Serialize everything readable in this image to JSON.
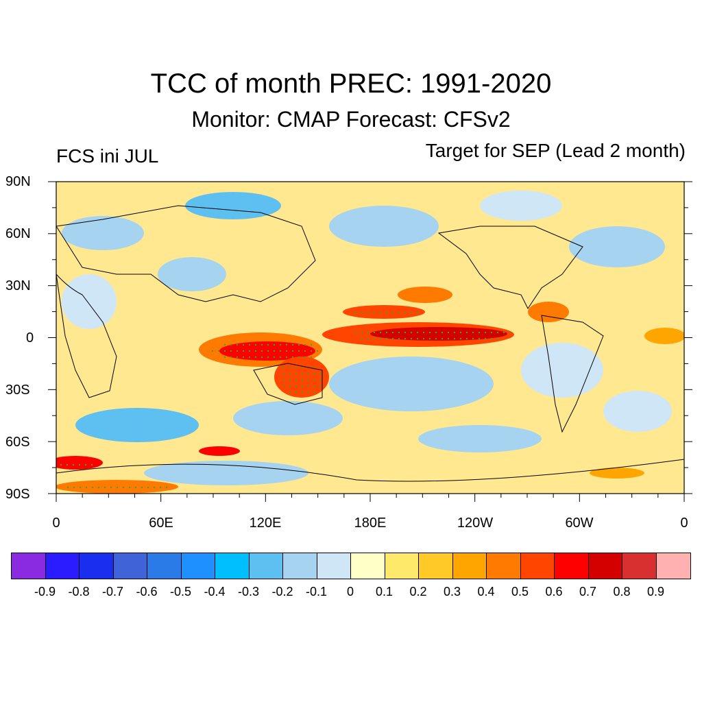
{
  "title": "TCC of month PREC: 1991-2020",
  "subtitle": "Monitor: CMAP   Forecast: CFSv2",
  "left_label": "FCS ini JUL",
  "right_label": "Target for SEP (Lead 2 month)",
  "lat_labels": [
    "90N",
    "60N",
    "30N",
    "0",
    "30S",
    "60S",
    "90S"
  ],
  "lon_labels": [
    "0",
    "60E",
    "120E",
    "180E",
    "120W",
    "60W",
    "0"
  ],
  "colorbar": {
    "labels": [
      "-0.9",
      "-0.8",
      "-0.7",
      "-0.6",
      "-0.5",
      "-0.4",
      "-0.3",
      "-0.2",
      "-0.1",
      "0",
      "0.1",
      "0.2",
      "0.3",
      "0.4",
      "0.5",
      "0.6",
      "0.7",
      "0.8",
      "0.9"
    ],
    "colors": [
      "#8a2be2",
      "#2a1cff",
      "#1a2ef0",
      "#4163d8",
      "#2a7ae8",
      "#1e90ff",
      "#00bfff",
      "#5ec0f0",
      "#a6d3f0",
      "#cfe6f7",
      "#ffffc8",
      "#ffe96a",
      "#ffc928",
      "#ffa500",
      "#ff7a00",
      "#ff4500",
      "#ff0000",
      "#d40000",
      "#d83030",
      "#ffb0b0"
    ]
  },
  "colors": {
    "ocean_bg": "#ffe890",
    "land_outline": "#000000",
    "stipple_sig": "#2eaa2e"
  }
}
